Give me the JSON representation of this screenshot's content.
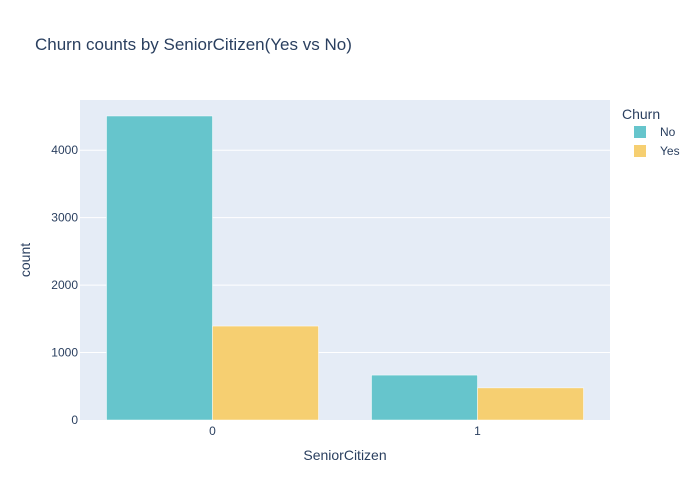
{
  "chart_data": {
    "type": "bar",
    "title": "Churn counts by SeniorCitizen(Yes vs No)",
    "xlabel": "SeniorCitizen",
    "ylabel": "count",
    "categories": [
      "0",
      "1"
    ],
    "series": [
      {
        "name": "No",
        "values": [
          4508,
          666
        ],
        "color": "#66c5cc"
      },
      {
        "name": "Yes",
        "values": [
          1393,
          476
        ],
        "color": "#f6cf71"
      }
    ],
    "ylim": [
      0,
      4745
    ],
    "yticks": [
      0,
      1000,
      2000,
      3000,
      4000
    ],
    "ytick_labels": [
      "0",
      "1000",
      "2000",
      "3000",
      "4000"
    ],
    "grid": true,
    "legend_title": "Churn",
    "legend_position": "top-right",
    "plot_background": "#e5ecf6"
  }
}
